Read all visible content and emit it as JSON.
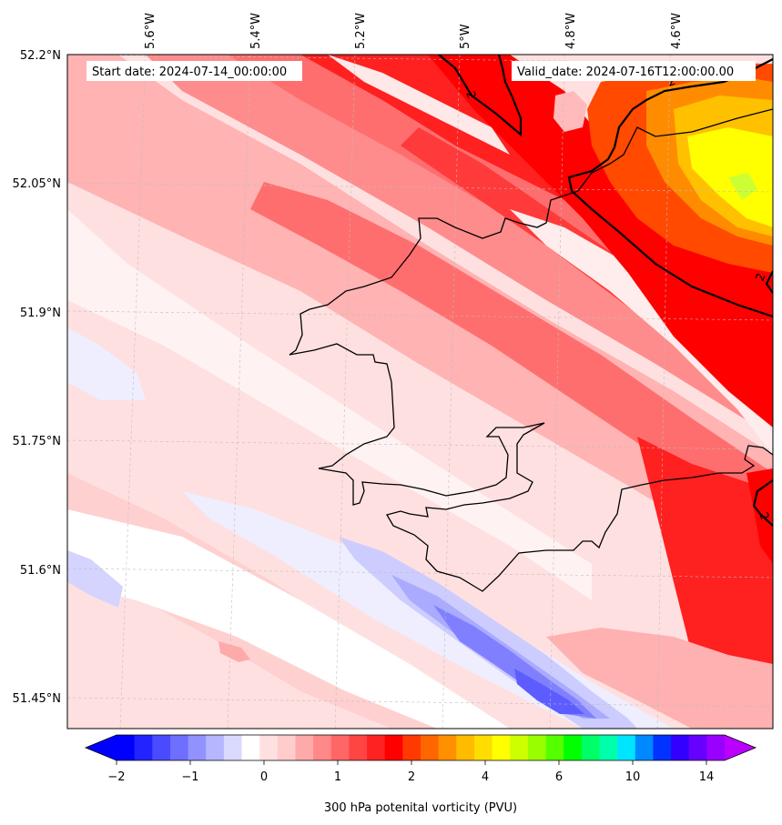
{
  "map": {
    "start_label": "Start date: 2024-07-14_00:00:00",
    "valid_label": "Valid_date: 2024-07-16T12:00:00.00",
    "lon_labels": [
      "5.6°W",
      "5.4°W",
      "5.2°W",
      "5°W",
      "4.8°W",
      "4.6°W"
    ],
    "lat_labels": [
      "52.2°N",
      "52.05°N",
      "51.9°N",
      "51.75°N",
      "51.6°N",
      "51.45°N"
    ],
    "contour_label": "2"
  },
  "colorbar": {
    "title": "300 hPa potenital vorticity (PVU)",
    "tick_labels": [
      "−2",
      "−1",
      "0",
      "1",
      "2",
      "4",
      "6",
      "10",
      "14"
    ],
    "colors": [
      "#0000ff",
      "#2323ff",
      "#4a4aff",
      "#6e6eff",
      "#9292ff",
      "#b6b6ff",
      "#dadaff",
      "#ffffff",
      "#ffe0e0",
      "#ffcccc",
      "#ffaaaa",
      "#ff8888",
      "#ff6666",
      "#ff4444",
      "#ff2222",
      "#ff0000",
      "#ff3a00",
      "#ff6600",
      "#ff9000",
      "#ffbb00",
      "#ffdd00",
      "#ffff00",
      "#ccff00",
      "#99ff00",
      "#55ff00",
      "#00ff00",
      "#00ff66",
      "#00ffaa",
      "#00e5ff",
      "#0088ff",
      "#0033ff",
      "#3300ff",
      "#6600ff",
      "#9900ff"
    ],
    "under_color": "#0000ff",
    "over_color": "#bb00ff"
  }
}
